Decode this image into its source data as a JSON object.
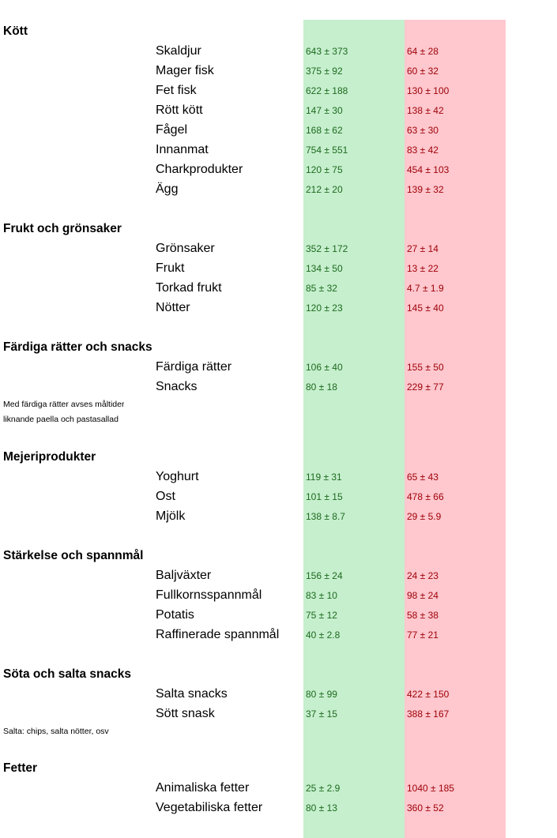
{
  "colors": {
    "good_bg": "#c6efce",
    "good_text": "#1d6a1d",
    "bad_bg": "#ffc7ce",
    "bad_text": "#9c0006"
  },
  "sections": [
    {
      "title": "Kött",
      "items": [
        {
          "name": "Skaldjur",
          "good": "643 ± 373",
          "bad": "64 ± 28"
        },
        {
          "name": "Mager fisk",
          "good": "375 ± 92",
          "bad": "60 ± 32"
        },
        {
          "name": "Fet fisk",
          "good": "622 ± 188",
          "bad": "130 ± 100"
        },
        {
          "name": "Rött kött",
          "good": "147 ± 30",
          "bad": "138 ± 42"
        },
        {
          "name": "Fågel",
          "good": "168 ± 62",
          "bad": "63 ± 30"
        },
        {
          "name": "Innanmat",
          "good": "754 ± 551",
          "bad": "83 ± 42"
        },
        {
          "name": "Charkprodukter",
          "good": "120 ± 75",
          "bad": "454 ± 103"
        },
        {
          "name": "Ägg",
          "good": "212 ± 20",
          "bad": "139 ± 32"
        }
      ],
      "notes": []
    },
    {
      "title": "Frukt och grönsaker",
      "items": [
        {
          "name": "Grönsaker",
          "good": "352 ± 172",
          "bad": "27 ± 14"
        },
        {
          "name": "Frukt",
          "good": "134 ± 50",
          "bad": "13 ± 22"
        },
        {
          "name": "Torkad frukt",
          "good": "85 ± 32",
          "bad": "4.7 ± 1.9"
        },
        {
          "name": "Nötter",
          "good": "120 ± 23",
          "bad": "145 ± 40"
        }
      ],
      "notes": []
    },
    {
      "title": "Färdiga rätter och snacks",
      "items": [
        {
          "name": "Färdiga rätter",
          "good": "106 ± 40",
          "bad": "155 ± 50"
        },
        {
          "name": "Snacks",
          "good": "80 ± 18",
          "bad": "229 ± 77"
        }
      ],
      "notes": [
        "Med färdiga rätter avses måltider",
        "liknande paella och pastasallad"
      ]
    },
    {
      "title": "Mejeriprodukter",
      "items": [
        {
          "name": "Yoghurt",
          "good": "119 ± 31",
          "bad": "65 ± 43"
        },
        {
          "name": "Ost",
          "good": "101 ± 15",
          "bad": "478 ± 66"
        },
        {
          "name": "Mjölk",
          "good": "138 ± 8.7",
          "bad": "29 ± 5.9"
        }
      ],
      "notes": []
    },
    {
      "title": "Stärkelse och spannmål",
      "items": [
        {
          "name": "Baljväxter",
          "good": "156 ± 24",
          "bad": "24 ± 23"
        },
        {
          "name": "Fullkornsspannmål",
          "good": "83 ± 10",
          "bad": "98 ± 24"
        },
        {
          "name": "Potatis",
          "good": "75 ± 12",
          "bad": "58 ± 38"
        },
        {
          "name": "Raffinerade spannmål",
          "good": "40 ± 2.8",
          "bad": "77 ± 21"
        }
      ],
      "notes": []
    },
    {
      "title": "Söta och salta snacks",
      "items": [
        {
          "name": "Salta snacks",
          "good": "80 ± 99",
          "bad": "422 ± 150"
        },
        {
          "name": "Sött snask",
          "good": "37 ± 15",
          "bad": "388 ± 167"
        }
      ],
      "notes": [
        "Salta: chips, salta nötter, osv"
      ]
    },
    {
      "title": "Fetter",
      "items": [
        {
          "name": "Animaliska fetter",
          "good": "25 ± 2.9",
          "bad": "1040 ± 185"
        },
        {
          "name": "Vegetabiliska fetter",
          "good": "80 ± 13",
          "bad": "360 ± 52"
        }
      ],
      "notes": []
    }
  ]
}
